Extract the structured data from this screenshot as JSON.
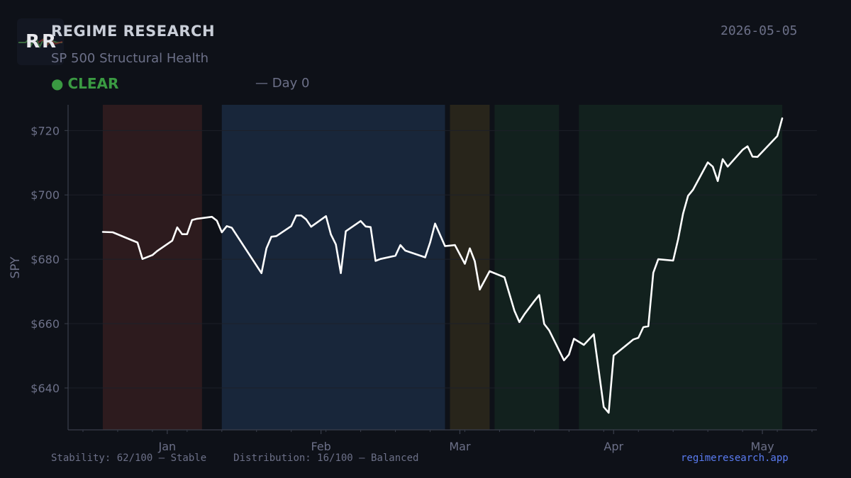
{
  "header": {
    "logo_text": "RR",
    "brand": "REGIME RESEARCH",
    "subtitle": "SP 500 Structural Health",
    "date": "2026-05-05",
    "status_dot": "●",
    "status": "CLEAR",
    "day": "— Day 0"
  },
  "footer": {
    "stability": "Stability: 62/100 — Stable",
    "distribution": "Distribution: 16/100 — Balanced",
    "site": "regimeresearch.app"
  },
  "colors": {
    "background": "#0e1118",
    "status_clear": "#3a9a42",
    "line": "#ffffff",
    "link": "#5a7bf0"
  },
  "chart_data": {
    "type": "line",
    "ylabel": "SPY",
    "ylim": [
      627,
      728
    ],
    "yticks": [
      640,
      660,
      680,
      700,
      720
    ],
    "ytick_labels": [
      "$640",
      "$660",
      "$680",
      "$700",
      "$720"
    ],
    "xlim": [
      "2025-12-12",
      "2026-05-12"
    ],
    "xticks": [
      "2026-01-01",
      "2026-02-01",
      "2026-03-01",
      "2026-04-01",
      "2026-05-01"
    ],
    "xtick_labels": [
      "Jan",
      "Feb",
      "Mar",
      "Apr",
      "May"
    ],
    "grid": true,
    "regimes": [
      {
        "start": "2025-12-19",
        "end": "2026-01-08",
        "color": "#2d1b1e"
      },
      {
        "start": "2026-01-12",
        "end": "2026-02-26",
        "color": "#18263a"
      },
      {
        "start": "2026-02-27",
        "end": "2026-03-07",
        "color": "#28251b"
      },
      {
        "start": "2026-03-08",
        "end": "2026-03-21",
        "color": "#12211e"
      },
      {
        "start": "2026-03-25",
        "end": "2026-05-05",
        "color": "#12211e"
      }
    ],
    "series": [
      {
        "color": "#ffffff",
        "x": [
          "2025-12-19",
          "2025-12-21",
          "2025-12-26",
          "2025-12-27",
          "2025-12-29",
          "2025-12-30",
          "2026-01-02",
          "2026-01-03",
          "2026-01-04",
          "2026-01-05",
          "2026-01-06",
          "2026-01-07",
          "2026-01-10",
          "2026-01-11",
          "2026-01-12",
          "2026-01-13",
          "2026-01-14",
          "2026-01-20",
          "2026-01-21",
          "2026-01-22",
          "2026-01-23",
          "2026-01-26",
          "2026-01-27",
          "2026-01-28",
          "2026-01-29",
          "2026-01-30",
          "2026-02-02",
          "2026-02-03",
          "2026-02-04",
          "2026-02-05",
          "2026-02-06",
          "2026-02-09",
          "2026-02-10",
          "2026-02-11",
          "2026-02-12",
          "2026-02-13",
          "2026-02-16",
          "2026-02-17",
          "2026-02-18",
          "2026-02-22",
          "2026-02-23",
          "2026-02-24",
          "2026-02-25",
          "2026-02-26",
          "2026-02-28",
          "2026-03-02",
          "2026-03-03",
          "2026-03-04",
          "2026-03-05",
          "2026-03-07",
          "2026-03-10",
          "2026-03-12",
          "2026-03-13",
          "2026-03-14",
          "2026-03-16",
          "2026-03-17",
          "2026-03-18",
          "2026-03-19",
          "2026-03-22",
          "2026-03-23",
          "2026-03-24",
          "2026-03-26",
          "2026-03-28",
          "2026-03-30",
          "2026-03-31",
          "2026-04-01",
          "2026-04-05",
          "2026-04-06",
          "2026-04-07",
          "2026-04-08",
          "2026-04-09",
          "2026-04-10",
          "2026-04-13",
          "2026-04-14",
          "2026-04-15",
          "2026-04-16",
          "2026-04-17",
          "2026-04-20",
          "2026-04-21",
          "2026-04-22",
          "2026-04-23",
          "2026-04-24",
          "2026-04-27",
          "2026-04-28",
          "2026-04-29",
          "2026-04-30",
          "2026-05-04",
          "2026-05-05"
        ],
        "values": [
          688.5,
          688.4,
          685.2,
          680.1,
          681.3,
          682.6,
          685.8,
          689.9,
          687.8,
          687.8,
          692.2,
          692.6,
          693.2,
          692.0,
          688.4,
          690.3,
          689.8,
          675.7,
          683.4,
          687.0,
          687.2,
          690.3,
          693.6,
          693.6,
          692.4,
          690.1,
          693.4,
          687.7,
          684.6,
          675.7,
          688.7,
          691.9,
          690.2,
          690.0,
          679.5,
          680.1,
          681.1,
          684.4,
          682.7,
          680.6,
          685.2,
          691.1,
          687.6,
          684.1,
          684.4,
          678.6,
          683.4,
          679.4,
          670.6,
          676.3,
          674.4,
          664.0,
          660.5,
          662.9,
          667.0,
          668.9,
          659.9,
          657.9,
          648.6,
          650.4,
          655.3,
          653.4,
          656.7,
          634.1,
          632.3,
          650.1,
          655.1,
          655.6,
          658.9,
          659.2,
          675.8,
          680.0,
          679.6,
          686.2,
          694.2,
          699.7,
          701.6,
          710.1,
          708.8,
          704.3,
          711.1,
          708.8,
          714.0,
          715.1,
          711.9,
          711.8,
          718.3,
          723.8
        ]
      }
    ]
  }
}
